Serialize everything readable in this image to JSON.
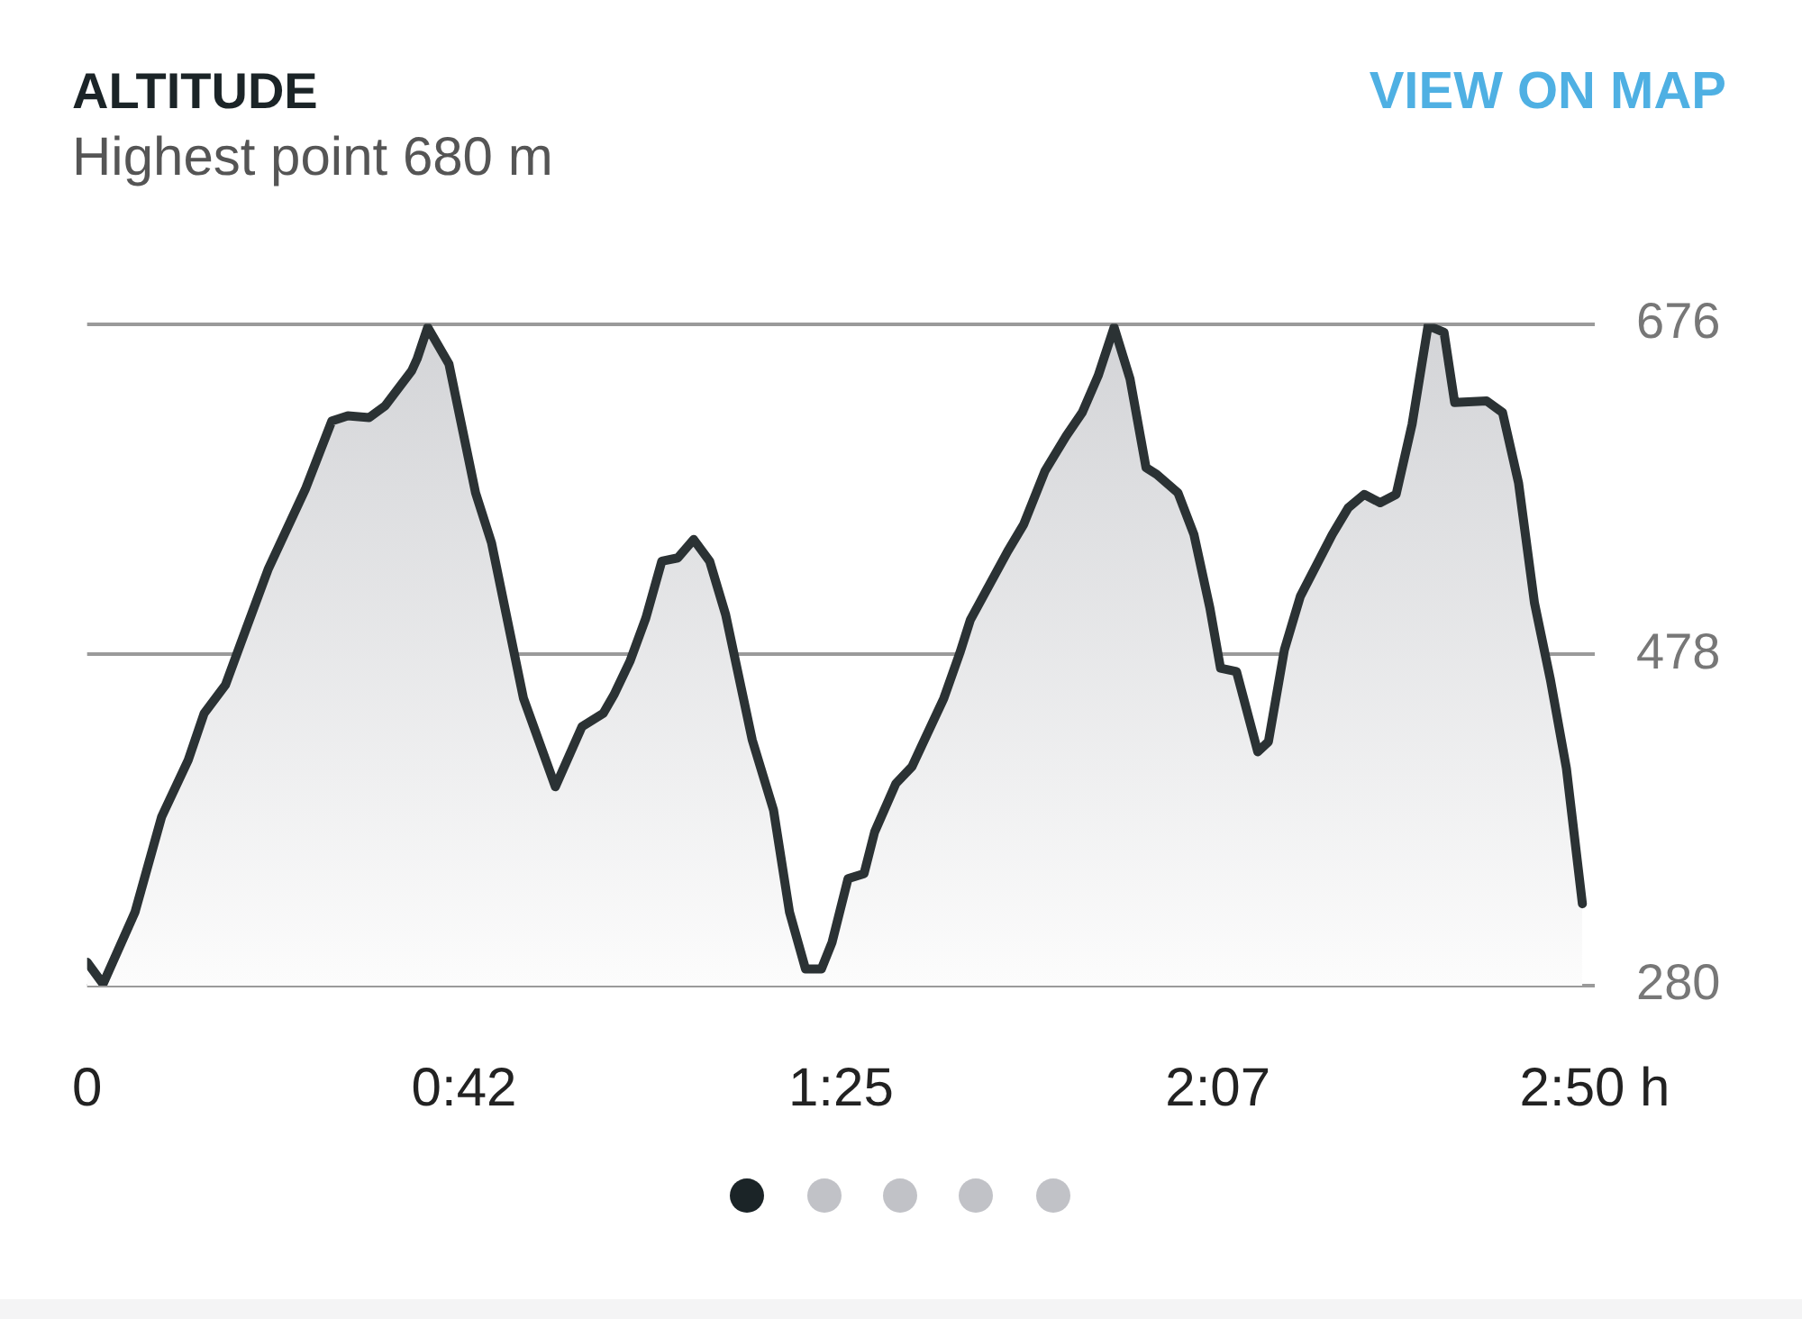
{
  "chart_data": {
    "type": "area",
    "title": "ALTITUDE",
    "subtitle": "Highest point 680 m",
    "annotations": [
      "VIEW ON MAP"
    ],
    "x": [
      0.0,
      0.03,
      0.09,
      0.14,
      0.19,
      0.22,
      0.26,
      0.29,
      0.34,
      0.41,
      0.46,
      0.49,
      0.53,
      0.56,
      0.61,
      0.62,
      0.64,
      0.68,
      0.73,
      0.76,
      0.82,
      0.88,
      0.93,
      0.97,
      0.99,
      1.02,
      1.05,
      1.08,
      1.11,
      1.14,
      1.17,
      1.2,
      1.25,
      1.29,
      1.32,
      1.35,
      1.38,
      1.4,
      1.43,
      1.46,
      1.48,
      1.52,
      1.55,
      1.61,
      1.64,
      1.66,
      1.73,
      1.76,
      1.8,
      1.84,
      1.87,
      1.9,
      1.93,
      1.96,
      1.99,
      2.01,
      2.05,
      2.08,
      2.11,
      2.13,
      2.16,
      2.2,
      2.22,
      2.25,
      2.28,
      2.34,
      2.37,
      2.4,
      2.43,
      2.46,
      2.49,
      2.52,
      2.55,
      2.57,
      2.63,
      2.66,
      2.69,
      2.72,
      2.75,
      2.78,
      2.81
    ],
    "values": [
      294,
      281,
      324,
      381,
      415,
      443,
      460,
      486,
      529,
      577,
      618,
      621,
      620,
      627,
      648,
      655,
      674,
      652,
      575,
      545,
      452,
      399,
      435,
      443,
      454,
      474,
      500,
      534,
      536,
      547,
      534,
      502,
      427,
      385,
      324,
      290,
      290,
      306,
      344,
      347,
      372,
      401,
      411,
      452,
      479,
      499,
      540,
      556,
      588,
      609,
      623,
      645,
      674,
      643,
      590,
      586,
      575,
      550,
      506,
      470,
      468,
      420,
      426,
      481,
      513,
      550,
      566,
      574,
      569,
      574,
      616,
      675,
      671,
      629,
      630,
      623,
      581,
      509,
      463,
      410,
      329
    ],
    "color": "#2b3234",
    "xlim": [
      0,
      2.8333
    ],
    "xticks": [
      0,
      {
        "value": 0.7083,
        "label": "0:42"
      },
      {
        "value": 1.4167,
        "label": "1:25"
      },
      {
        "value": 2.125,
        "label": "2:07"
      },
      {
        "value": 2.8333,
        "label": "2:50 h"
      }
    ],
    "ylim": [
      280,
      676
    ],
    "yticks": [
      280,
      478,
      676
    ],
    "grid": "y",
    "marker": "none",
    "line_style": "solid"
  }
}
